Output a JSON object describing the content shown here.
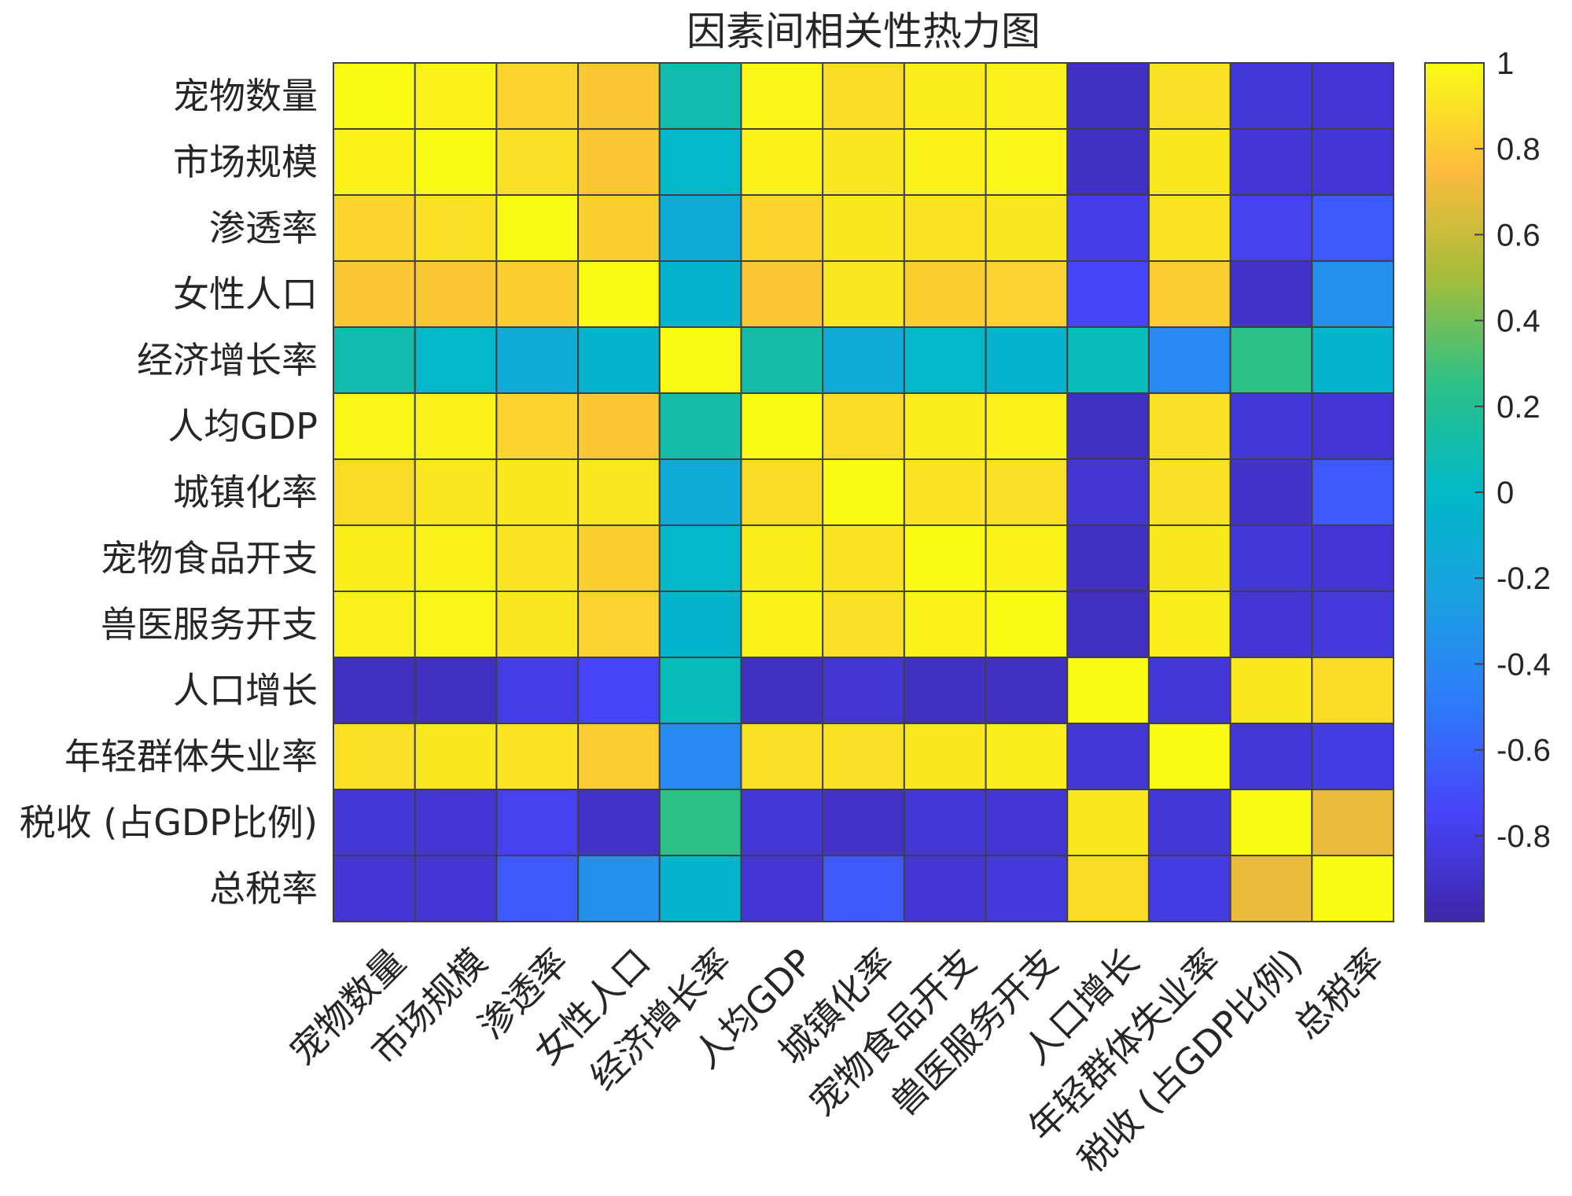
{
  "chart_data": {
    "type": "heatmap",
    "title": "因素间相关性热力图",
    "row_labels": [
      "宠物数量",
      "市场规模",
      "渗透率",
      "女性人口",
      "经济增长率",
      "人均GDP",
      "城镇化率",
      "宠物食品开支",
      "兽医服务开支",
      "人口增长",
      "年轻群体失业率",
      "税收 (占GDP比例)",
      "总税率"
    ],
    "col_labels": [
      "宠物数量",
      "市场规模",
      "渗透率",
      "女性人口",
      "经济增长率",
      "人均GDP",
      "城镇化率",
      "宠物食品开支",
      "兽医服务开支",
      "人口增长",
      "年轻群体失业率",
      "税收 (占GDP比例)",
      "总税率"
    ],
    "values": [
      [
        1.0,
        0.97,
        0.85,
        0.8,
        0.1,
        0.98,
        0.88,
        0.95,
        0.96,
        -0.92,
        0.9,
        -0.85,
        -0.86
      ],
      [
        0.97,
        1.0,
        0.9,
        0.8,
        -0.02,
        0.97,
        0.92,
        0.97,
        0.98,
        -0.92,
        0.93,
        -0.86,
        -0.86
      ],
      [
        0.85,
        0.9,
        1.0,
        0.83,
        -0.15,
        0.85,
        0.93,
        0.91,
        0.92,
        -0.8,
        0.91,
        -0.78,
        -0.65
      ],
      [
        0.8,
        0.8,
        0.83,
        1.0,
        -0.05,
        0.8,
        0.92,
        0.83,
        0.84,
        -0.75,
        0.82,
        -0.9,
        -0.35
      ],
      [
        0.1,
        -0.02,
        -0.15,
        -0.05,
        1.0,
        0.12,
        -0.15,
        -0.02,
        -0.05,
        0.05,
        -0.4,
        0.25,
        -0.05
      ],
      [
        0.98,
        0.97,
        0.85,
        0.8,
        0.12,
        1.0,
        0.88,
        0.95,
        0.97,
        -0.92,
        0.9,
        -0.85,
        -0.86
      ],
      [
        0.88,
        0.92,
        0.93,
        0.92,
        -0.15,
        0.88,
        1.0,
        0.91,
        0.9,
        -0.87,
        0.9,
        -0.9,
        -0.65
      ],
      [
        0.95,
        0.97,
        0.91,
        0.83,
        -0.02,
        0.95,
        0.91,
        1.0,
        0.97,
        -0.92,
        0.93,
        -0.85,
        -0.86
      ],
      [
        0.96,
        0.98,
        0.92,
        0.84,
        -0.05,
        0.97,
        0.9,
        0.97,
        1.0,
        -0.92,
        0.95,
        -0.86,
        -0.84
      ],
      [
        -0.92,
        -0.92,
        -0.8,
        -0.75,
        0.05,
        -0.92,
        -0.87,
        -0.92,
        -0.92,
        1.0,
        -0.85,
        0.93,
        0.88
      ],
      [
        0.9,
        0.93,
        0.91,
        0.82,
        -0.4,
        0.9,
        0.9,
        0.93,
        0.95,
        -0.85,
        1.0,
        -0.85,
        -0.82
      ],
      [
        -0.85,
        -0.86,
        -0.78,
        -0.9,
        0.25,
        -0.85,
        -0.9,
        -0.85,
        -0.86,
        0.93,
        -0.85,
        1.0,
        0.7
      ],
      [
        -0.86,
        -0.86,
        -0.65,
        -0.35,
        -0.05,
        -0.86,
        -0.65,
        -0.86,
        -0.84,
        0.88,
        -0.82,
        0.7,
        1.0
      ]
    ],
    "colorbar": {
      "range": [
        -1,
        1
      ],
      "ticks": [
        1,
        0.8,
        0.6,
        0.4,
        0.2,
        0,
        -0.2,
        -0.4,
        -0.6,
        -0.8
      ],
      "tick_labels": [
        "1",
        "0.8",
        "0.6",
        "0.4",
        "0.2",
        "0",
        "-0.2",
        "-0.4",
        "-0.6",
        "-0.8"
      ],
      "colormap": "parula"
    }
  }
}
